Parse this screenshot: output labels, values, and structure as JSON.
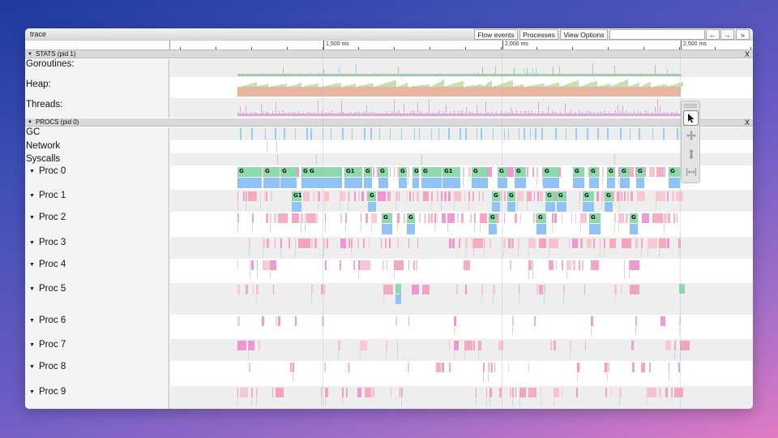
{
  "window": {
    "title": "trace",
    "buttons": {
      "flow_events": "Flow events",
      "processes": "Processes",
      "view_options": "View Options",
      "prev": "←",
      "next": "→",
      "more": "»"
    },
    "search_value": ""
  },
  "ruler": {
    "labels": [
      "1,500 ms",
      "2,000 ms",
      "2,500 ms"
    ]
  },
  "stats": {
    "header": "STATS (pid 1)",
    "close": "X",
    "rows": [
      "Goroutines:",
      "Heap:",
      "Threads:"
    ]
  },
  "procs": {
    "header": "PROCS (pid 0)",
    "close": "X",
    "rows": [
      "GC",
      "Network",
      "Syscalls"
    ],
    "procs": [
      "Proc 0",
      "Proc 1",
      "Proc 2",
      "Proc 3",
      "Proc 4",
      "Proc 5",
      "Proc 6",
      "Proc 7",
      "Proc 8",
      "Proc 9"
    ]
  },
  "slice_labels": {
    "proc0": [
      "G",
      "G",
      "G",
      "G",
      "G",
      "G1",
      "G",
      "G",
      "G",
      "G",
      "G1",
      "G",
      "G",
      "G",
      "G",
      "G",
      "G",
      "G",
      "G",
      "G",
      "G"
    ],
    "proc1": [
      "G1",
      "G",
      "G",
      "G",
      "G",
      "G",
      "G"
    ],
    "proc2": [
      "G",
      "G",
      "G",
      "G"
    ]
  },
  "toolbox": {
    "tools": [
      "select",
      "pan",
      "zoom",
      "timing"
    ]
  },
  "colors": {
    "running_green": "#8ed9ab",
    "running_blue": "#8fc3f5",
    "syscall_pink": "#f7b6c4",
    "gc_blue": "#7cc4f0",
    "heap_green": "#c5e3b0",
    "heap_orange": "#eab5a0",
    "threads_purple": "#d9a9d9",
    "goroutines_green": "#a8c6a8"
  }
}
